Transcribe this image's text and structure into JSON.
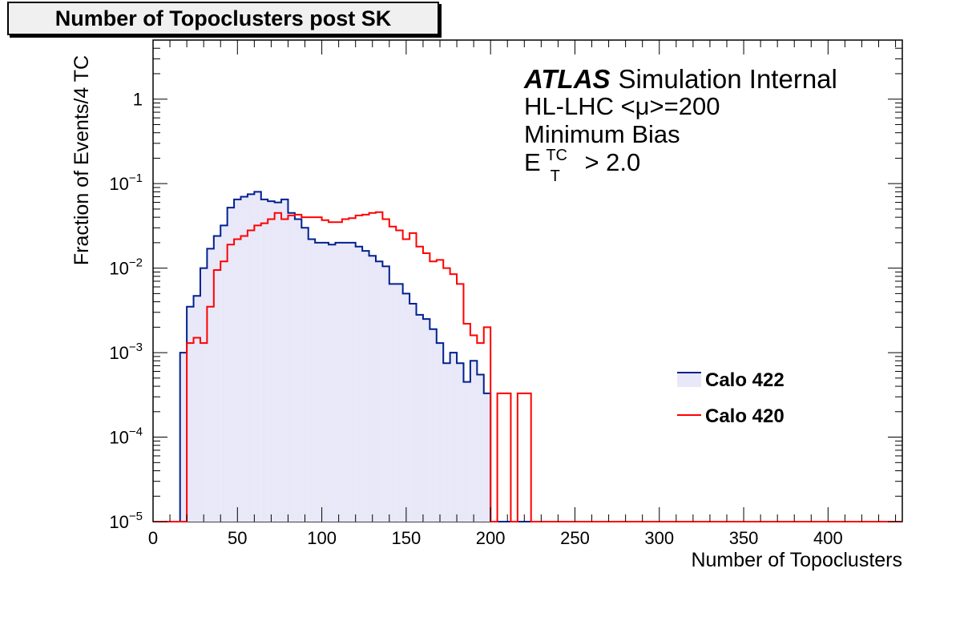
{
  "chart_data": {
    "type": "histogram",
    "title": "Number of Topoclusters post SK",
    "xlabel": "Number of Topoclusters",
    "ylabel": "Fraction of Events/4 TC",
    "xlim": [
      0,
      444
    ],
    "ylim": [
      1e-05,
      5
    ],
    "yscale": "log",
    "bin_width": 4,
    "x_ticks": [
      "0",
      "50",
      "100",
      "150",
      "200",
      "250",
      "300",
      "350",
      "400"
    ],
    "y_ticks": [
      {
        "base": "10",
        "exp": "−5",
        "value": 1e-05
      },
      {
        "base": "10",
        "exp": "−4",
        "value": 0.0001
      },
      {
        "base": "10",
        "exp": "−3",
        "value": 0.001
      },
      {
        "base": "10",
        "exp": "−2",
        "value": 0.01
      },
      {
        "base": "10",
        "exp": "−1",
        "value": 0.1
      },
      {
        "base": "1",
        "exp": "",
        "value": 1
      }
    ],
    "annotation": {
      "atlas": "ATLAS",
      "atlas_suffix": "Simulation Internal",
      "line2": "HL-LHC <μ>=200",
      "line3": "Minimum Bias",
      "et_base": "E",
      "et_sup": "TC",
      "et_sub": "T",
      "et_rest": "> 2.0"
    },
    "legend_position": "right",
    "series": [
      {
        "name": "Calo 422",
        "color": "#00208f",
        "fill": "#e8e8f8",
        "bins": [
          [
            16,
            0.001
          ],
          [
            20,
            0.0035
          ],
          [
            24,
            0.0047
          ],
          [
            28,
            0.01
          ],
          [
            32,
            0.017
          ],
          [
            36,
            0.024
          ],
          [
            40,
            0.032
          ],
          [
            44,
            0.052
          ],
          [
            48,
            0.065
          ],
          [
            52,
            0.07
          ],
          [
            56,
            0.075
          ],
          [
            60,
            0.08
          ],
          [
            64,
            0.065
          ],
          [
            68,
            0.062
          ],
          [
            72,
            0.06
          ],
          [
            76,
            0.065
          ],
          [
            80,
            0.045
          ],
          [
            84,
            0.038
          ],
          [
            88,
            0.03
          ],
          [
            92,
            0.022
          ],
          [
            96,
            0.02
          ],
          [
            100,
            0.02
          ],
          [
            104,
            0.019
          ],
          [
            108,
            0.02
          ],
          [
            112,
            0.02
          ],
          [
            116,
            0.02
          ],
          [
            120,
            0.018
          ],
          [
            124,
            0.016
          ],
          [
            128,
            0.014
          ],
          [
            132,
            0.012
          ],
          [
            136,
            0.0105
          ],
          [
            140,
            0.0065
          ],
          [
            144,
            0.0065
          ],
          [
            148,
            0.005
          ],
          [
            152,
            0.0038
          ],
          [
            156,
            0.0028
          ],
          [
            160,
            0.0025
          ],
          [
            164,
            0.0019
          ],
          [
            168,
            0.0013
          ],
          [
            172,
            0.00075
          ],
          [
            176,
            0.001
          ],
          [
            180,
            0.00075
          ],
          [
            184,
            0.00045
          ],
          [
            188,
            0.0008
          ],
          [
            192,
            0.00055
          ],
          [
            196,
            0.00033
          ]
        ]
      },
      {
        "name": "Calo 420",
        "color": "#ff0000",
        "bins": [
          [
            16,
            1e-05
          ],
          [
            20,
            0.0013
          ],
          [
            24,
            0.0015
          ],
          [
            28,
            0.0013
          ],
          [
            32,
            0.0035
          ],
          [
            36,
            0.0095
          ],
          [
            40,
            0.012
          ],
          [
            44,
            0.019
          ],
          [
            48,
            0.022
          ],
          [
            52,
            0.024
          ],
          [
            56,
            0.028
          ],
          [
            60,
            0.032
          ],
          [
            64,
            0.034
          ],
          [
            68,
            0.038
          ],
          [
            72,
            0.045
          ],
          [
            76,
            0.038
          ],
          [
            80,
            0.042
          ],
          [
            84,
            0.043
          ],
          [
            88,
            0.04
          ],
          [
            92,
            0.04
          ],
          [
            96,
            0.04
          ],
          [
            100,
            0.037
          ],
          [
            104,
            0.035
          ],
          [
            108,
            0.035
          ],
          [
            112,
            0.038
          ],
          [
            116,
            0.039
          ],
          [
            120,
            0.042
          ],
          [
            124,
            0.043
          ],
          [
            128,
            0.045
          ],
          [
            132,
            0.046
          ],
          [
            136,
            0.038
          ],
          [
            140,
            0.031
          ],
          [
            144,
            0.028
          ],
          [
            148,
            0.022
          ],
          [
            152,
            0.026
          ],
          [
            156,
            0.018
          ],
          [
            160,
            0.015
          ],
          [
            164,
            0.012
          ],
          [
            168,
            0.0125
          ],
          [
            172,
            0.01
          ],
          [
            176,
            0.0085
          ],
          [
            180,
            0.0065
          ],
          [
            184,
            0.0022
          ],
          [
            188,
            0.0016
          ],
          [
            192,
            0.0013
          ],
          [
            196,
            0.002
          ],
          [
            200,
            1e-05
          ],
          [
            204,
            0.00033
          ],
          [
            208,
            0.00033
          ],
          [
            212,
            1e-05
          ],
          [
            216,
            0.00033
          ],
          [
            220,
            0.00033
          ]
        ]
      }
    ]
  }
}
